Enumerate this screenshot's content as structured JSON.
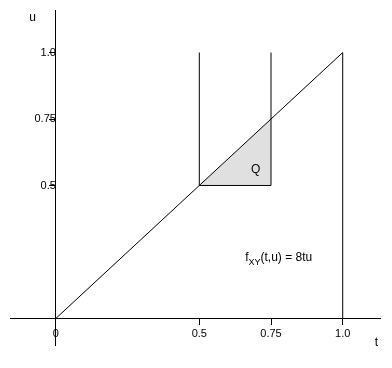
{
  "chart_data": {
    "type": "line",
    "x_label": "t",
    "y_label": "u",
    "xlim": [
      -0.16,
      1.13
    ],
    "ylim": [
      -0.1,
      1.16
    ],
    "xticks": [
      0,
      0.5,
      0.75,
      {
        "value": 1,
        "label": "1.0"
      }
    ],
    "yticks": [
      0.5,
      0.75,
      {
        "value": 1,
        "label": "1.0"
      }
    ],
    "grid": false,
    "series": [
      {
        "type": "area",
        "x": [
          0.5,
          0.75,
          0.75,
          0.5
        ],
        "values": [
          0.5,
          0.75,
          0.5,
          0.5
        ],
        "color": "#e0e0e0"
      },
      {
        "type": "line",
        "x": [
          0,
          1
        ],
        "values": [
          0,
          1
        ],
        "color": "#000000"
      },
      {
        "type": "line",
        "x": [
          1,
          1
        ],
        "values": [
          0,
          1
        ],
        "color": "#000000"
      },
      {
        "type": "line",
        "x": [
          0.5,
          0.5
        ],
        "values": [
          0.5,
          1
        ],
        "color": "#000000"
      },
      {
        "type": "line",
        "x": [
          0.75,
          0.75
        ],
        "values": [
          0.5,
          1
        ],
        "color": "#000000"
      },
      {
        "type": "line",
        "x": [
          0.5,
          0.75
        ],
        "values": [
          0.5,
          0.5
        ],
        "color": "#000000"
      }
    ],
    "annotations": [
      {
        "text": "Q",
        "x": 0.68,
        "y": 0.56
      },
      {
        "text": "f",
        "subscript": "XY",
        "rest": "(t,u) = 8tu",
        "x": 0.66,
        "y": 0.23
      }
    ]
  }
}
